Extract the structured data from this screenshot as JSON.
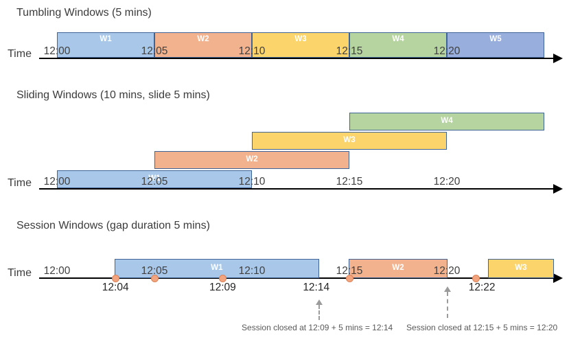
{
  "palette": {
    "blue": {
      "fill": "#A9C8E9"
    },
    "orange": {
      "fill": "#F2B28D"
    },
    "yellow": {
      "fill": "#FBD56B"
    },
    "green": {
      "fill": "#B5D4A0"
    },
    "blue2": {
      "fill": "#98AEDC"
    }
  },
  "bar_border_color": "#3E6396",
  "axis_color": "#000000",
  "tumbling": {
    "title": "Tumbling Windows (5 mins)",
    "time_label": "Time",
    "ticks": [
      "12:00",
      "12:05",
      "12:10",
      "12:15",
      "12:20"
    ],
    "windows": [
      {
        "label": "W1",
        "start_min": 0,
        "end_min": 5,
        "color": "blue"
      },
      {
        "label": "W2",
        "start_min": 5,
        "end_min": 10,
        "color": "orange"
      },
      {
        "label": "W3",
        "start_min": 10,
        "end_min": 15,
        "color": "yellow"
      },
      {
        "label": "W4",
        "start_min": 15,
        "end_min": 20,
        "color": "green"
      },
      {
        "label": "W5",
        "start_min": 20,
        "end_min": 25,
        "color": "blue2"
      }
    ]
  },
  "sliding": {
    "title": "Sliding Windows (10 mins, slide 5 mins)",
    "time_label": "Time",
    "ticks": [
      "12:00",
      "12:05",
      "12:10",
      "12:15",
      "12:20"
    ],
    "windows": [
      {
        "label": "W1",
        "start_min": 0,
        "end_min": 10,
        "color": "blue"
      },
      {
        "label": "W2",
        "start_min": 5,
        "end_min": 15,
        "color": "orange"
      },
      {
        "label": "W3",
        "start_min": 10,
        "end_min": 20,
        "color": "yellow"
      },
      {
        "label": "W4",
        "start_min": 15,
        "end_min": 25,
        "color": "green"
      }
    ]
  },
  "session": {
    "title": "Session Windows (gap duration 5 mins)",
    "time_label": "Time",
    "ticks": [
      "12:00",
      "12:05",
      "12:10",
      "12:15",
      "12:20"
    ],
    "windows": [
      {
        "label": "W1",
        "start_min": 2.95,
        "end_min": 13.45,
        "color": "blue"
      },
      {
        "label": "W2",
        "start_min": 14.95,
        "end_min": 20.05,
        "color": "orange"
      },
      {
        "label": "W3",
        "start_min": 22.1,
        "end_min": 25.5,
        "color": "yellow"
      }
    ],
    "events_min": [
      3.0,
      5.0,
      8.5,
      15.0,
      21.5
    ],
    "event_dot_color": {
      "fill": "#F2A47E",
      "border": "#DD8257"
    },
    "below_labels": [
      {
        "text": "12:04",
        "min": 3.0
      },
      {
        "text": "12:09",
        "min": 8.5
      },
      {
        "text": "12:14",
        "min": 13.3
      },
      {
        "text": "12:22",
        "min": 21.8
      }
    ],
    "annotations": [
      {
        "text": "Session closed at 12:09 + 5 mins = 12:14",
        "arrow_min": 13.45,
        "caption_min": 13.35
      },
      {
        "text": "Session closed at 12:15 + 5 mins = 12:20",
        "arrow_min": 20.05,
        "caption_min": 21.8
      }
    ]
  }
}
